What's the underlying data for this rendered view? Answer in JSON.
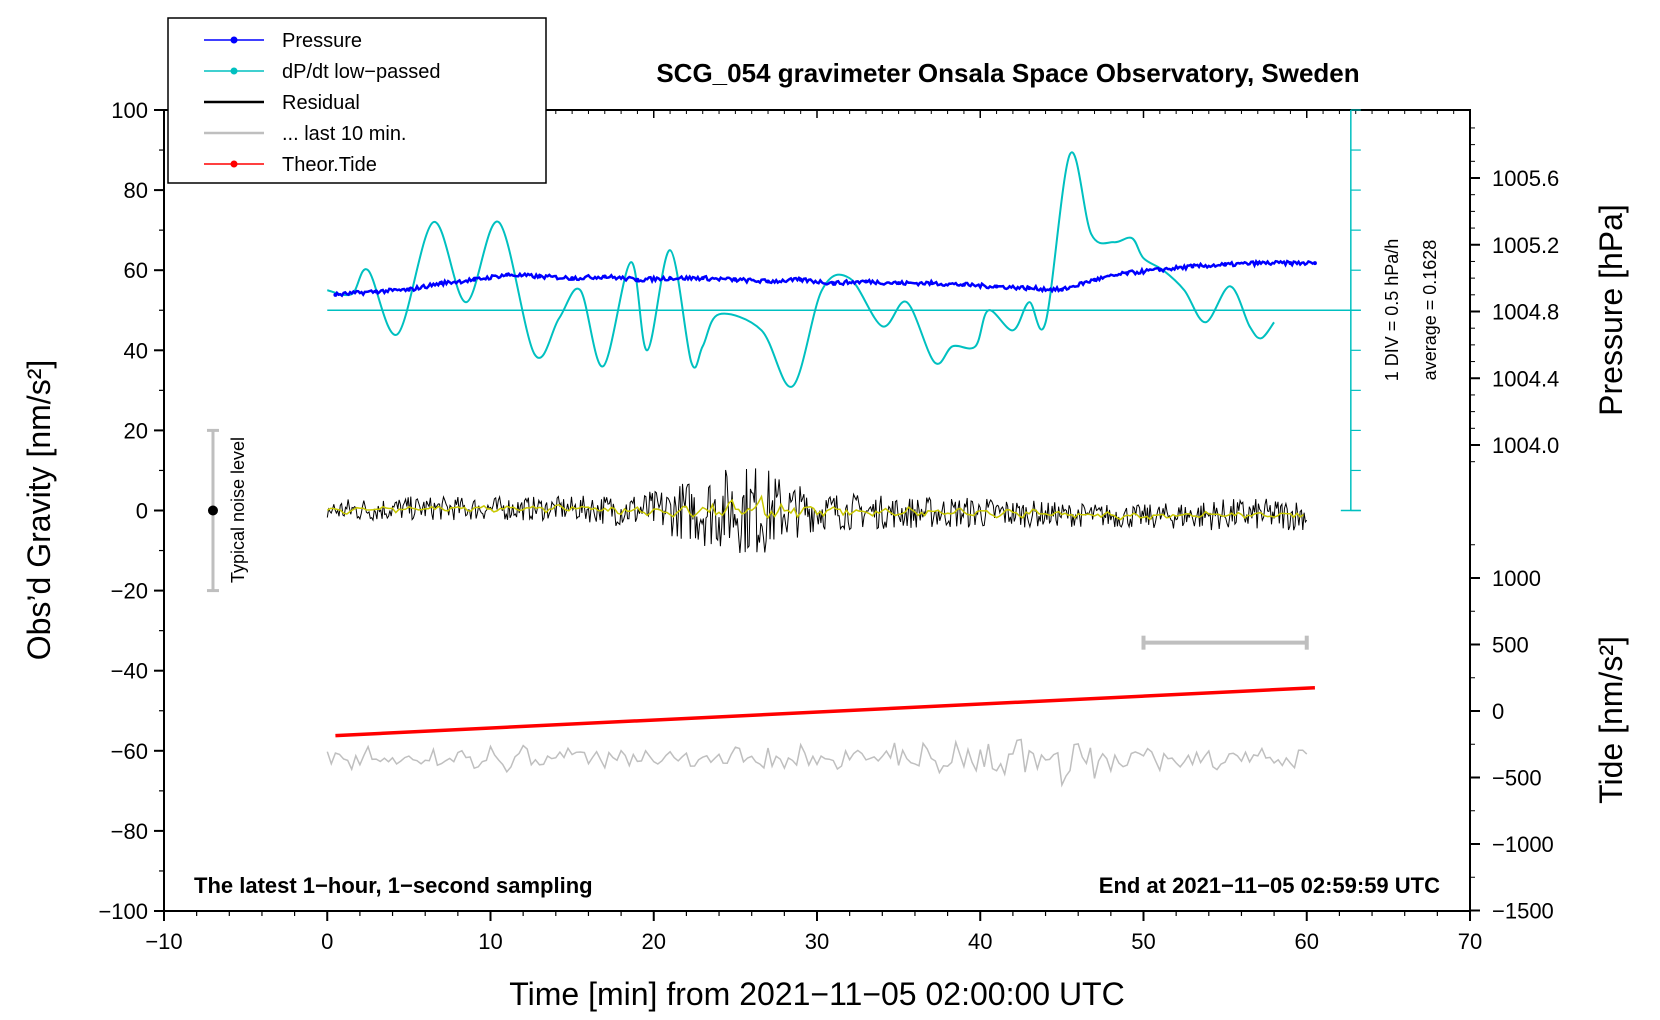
{
  "chart_data": {
    "type": "line",
    "title": "SCG_054 gravimeter Onsala Space Observatory, Sweden",
    "xlabel": "Time [min] from 2021−11−05 02:00:00 UTC",
    "ylabel_left": "Obs’d Gravity [nm/s²]",
    "ylabel_right_top": "Pressure [hPa]",
    "ylabel_right_bottom": "Tide [nm/s²]",
    "xlim": [
      -10,
      70
    ],
    "ylim": [
      -100,
      100
    ],
    "pressure_lim": [
      1003.8,
      1006.0
    ],
    "tide_lim": [
      -1500,
      1500
    ],
    "x_ticks": [
      "−10",
      "0",
      "10",
      "20",
      "30",
      "40",
      "50",
      "60",
      "70"
    ],
    "y_ticks": [
      "100",
      "80",
      "60",
      "40",
      "20",
      "0",
      "−20",
      "−40",
      "−60",
      "−80",
      "−100"
    ],
    "pressure_ticks": [
      "1005.6",
      "1005.2",
      "1004.8",
      "1004.4",
      "1004.0"
    ],
    "tide_ticks": [
      "1000",
      "500",
      "0",
      "−500",
      "−1000",
      "−1500"
    ],
    "legend": [
      {
        "label": "Pressure",
        "color": "#0000ff",
        "marker": true
      },
      {
        "label": "dP/dt low−passed",
        "color": "#00c0c0",
        "marker": true
      },
      {
        "label": "Residual",
        "color": "#000000",
        "marker": false
      },
      {
        "label": "... last 10 min.",
        "color": "#bfbfbf",
        "marker": false
      },
      {
        "label": "Theor.Tide",
        "color": "#ff0000",
        "marker": true
      }
    ],
    "dpdt_scale_label": "1 DIV = 0.5 hPa/h",
    "dpdt_average_label": "average = 0.1628",
    "noise_label": "Typical noise level",
    "noise_range": [
      -20,
      20
    ],
    "note_left": "The latest 1−hour, 1−second sampling",
    "note_right": "End at 2021−11−05 02:59:59 UTC",
    "last10_bar_x": [
      50,
      60
    ],
    "series": [
      {
        "name": "Pressure",
        "color": "#0000ff",
        "unit": "hPa",
        "x": [
          0.5,
          3,
          5,
          7,
          9,
          11,
          13,
          15,
          17,
          19,
          21,
          23,
          25,
          27,
          29,
          31,
          33,
          35,
          37,
          39,
          41,
          43,
          45,
          47,
          49,
          51,
          53,
          55,
          57,
          59,
          60.5
        ],
        "values": [
          1004.9,
          1004.92,
          1004.93,
          1004.97,
          1004.99,
          1005.02,
          1005.01,
          1005.0,
          1005.01,
          1004.99,
          1005.0,
          1005.0,
          1004.99,
          1004.98,
          1004.99,
          1004.97,
          1004.98,
          1004.97,
          1004.97,
          1004.96,
          1004.95,
          1004.94,
          1004.93,
          1004.99,
          1005.03,
          1005.05,
          1005.07,
          1005.08,
          1005.09,
          1005.09,
          1005.09
        ]
      },
      {
        "name": "dP/dt low-passed",
        "color": "#00c0c0",
        "unit": "nm/s²-equivalent divisions",
        "x": [
          0,
          1.5,
          2.5,
          4.3,
          6.5,
          8.5,
          10.5,
          12.7,
          14.2,
          15.5,
          16.9,
          18.6,
          19.6,
          21,
          22.3,
          23,
          24,
          26.6,
          28.5,
          30.3,
          32,
          34,
          35.5,
          37.2,
          38.3,
          39.7,
          40.5,
          42,
          43,
          44,
          45.5,
          46.8,
          48.2,
          49.3,
          50,
          51.2,
          52.5,
          53.8,
          55.3,
          56.5,
          57.2,
          58
        ],
        "values": [
          55,
          54,
          60,
          44,
          72,
          52,
          72,
          39,
          48,
          55,
          36,
          62,
          40,
          65,
          37,
          41,
          49,
          45,
          31,
          55,
          58,
          46,
          52,
          37,
          41,
          41,
          50,
          45,
          52,
          47,
          89,
          69,
          67,
          68,
          63,
          60,
          55,
          47,
          56,
          46,
          43,
          47
        ]
      },
      {
        "name": "Residual",
        "color": "#000000",
        "x": [
          0,
          5,
          10,
          15,
          20,
          23,
          25,
          26.5,
          28,
          30,
          35,
          40,
          45,
          50,
          55,
          60
        ],
        "values": [
          0,
          0.5,
          0.5,
          0.5,
          0,
          0,
          0.5,
          0,
          0,
          0,
          -0.5,
          -0.5,
          -1,
          -1.5,
          -1,
          -1
        ],
        "noise_amplitude": [
          3,
          3,
          3,
          3,
          5,
          9,
          11,
          12,
          8,
          5,
          4,
          4,
          3,
          3,
          4,
          4
        ]
      },
      {
        "name": "last 10 min",
        "color": "#bfbfbf",
        "x": [
          0,
          10,
          20,
          30,
          40,
          43,
          45,
          50,
          55,
          60
        ],
        "values": [
          -62,
          -62,
          -62,
          -62,
          -62,
          -62,
          -62,
          -62,
          -62,
          -62
        ]
      },
      {
        "name": "Theor.Tide",
        "color": "#ff0000",
        "unit": "nm/s²",
        "x": [
          0.5,
          60.5
        ],
        "values": [
          -185,
          175
        ]
      }
    ]
  }
}
